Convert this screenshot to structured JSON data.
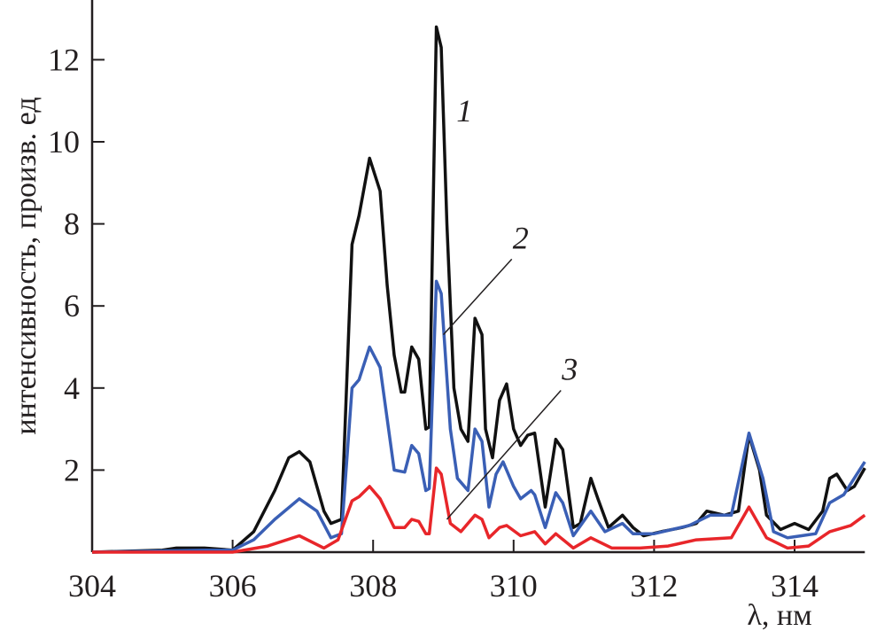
{
  "chart_data": {
    "type": "line",
    "title": "",
    "xlabel": "λ, нм",
    "ylabel": "интенсивность, произв. ед",
    "xlim": [
      304,
      315
    ],
    "ylim": [
      0,
      13.5
    ],
    "xticks": [
      304,
      306,
      308,
      310,
      312,
      314
    ],
    "yticks": [
      2,
      4,
      6,
      8,
      10,
      12
    ],
    "grid": false,
    "series": [
      {
        "name": "1",
        "color": "#111111",
        "x": [
          304,
          305,
          305.2,
          305.6,
          306,
          306.3,
          306.6,
          306.8,
          306.95,
          307.1,
          307.3,
          307.4,
          307.55,
          307.7,
          307.8,
          307.95,
          308.1,
          308.2,
          308.3,
          308.4,
          308.45,
          308.55,
          308.65,
          308.75,
          308.8,
          308.9,
          308.97,
          309.05,
          309.15,
          309.25,
          309.35,
          309.45,
          309.55,
          309.6,
          309.7,
          309.8,
          309.9,
          310.0,
          310.1,
          310.2,
          310.3,
          310.45,
          310.6,
          310.7,
          310.85,
          310.95,
          311.1,
          311.2,
          311.35,
          311.55,
          311.7,
          311.85,
          312.1,
          312.4,
          312.6,
          312.75,
          313.0,
          313.2,
          313.35,
          313.5,
          313.6,
          313.8,
          314.0,
          314.2,
          314.4,
          314.5,
          314.6,
          314.75,
          314.85,
          315
        ],
        "y": [
          0,
          0.05,
          0.1,
          0.1,
          0.05,
          0.5,
          1.5,
          2.3,
          2.45,
          2.2,
          1.0,
          0.7,
          0.8,
          7.5,
          8.2,
          9.6,
          8.8,
          6.5,
          4.8,
          3.9,
          3.9,
          5.0,
          4.7,
          3.0,
          3.05,
          12.8,
          12.3,
          8.0,
          4.0,
          3.0,
          2.7,
          5.7,
          5.3,
          3.0,
          2.3,
          3.7,
          4.1,
          3.0,
          2.6,
          2.85,
          2.9,
          1.1,
          2.75,
          2.5,
          0.6,
          0.7,
          1.8,
          1.3,
          0.6,
          0.9,
          0.6,
          0.4,
          0.5,
          0.6,
          0.7,
          1.0,
          0.9,
          1.0,
          2.85,
          2.0,
          0.9,
          0.55,
          0.7,
          0.55,
          1.0,
          1.8,
          1.9,
          1.5,
          1.6,
          2.05
        ]
      },
      {
        "name": "2",
        "color": "#3a5fb5",
        "x": [
          304,
          305.6,
          306,
          306.3,
          306.6,
          306.95,
          307.2,
          307.4,
          307.55,
          307.7,
          307.8,
          307.95,
          308.1,
          308.3,
          308.45,
          308.55,
          308.65,
          308.75,
          308.8,
          308.9,
          308.97,
          309.1,
          309.2,
          309.35,
          309.45,
          309.55,
          309.65,
          309.75,
          309.85,
          310.0,
          310.1,
          310.25,
          310.3,
          310.45,
          310.6,
          310.7,
          310.85,
          311.1,
          311.3,
          311.55,
          311.7,
          312.0,
          312.5,
          312.8,
          313.1,
          313.35,
          313.55,
          313.7,
          313.9,
          314.1,
          314.3,
          314.5,
          314.7,
          315
        ],
        "y": [
          0,
          0.05,
          0.05,
          0.3,
          0.8,
          1.3,
          1.0,
          0.35,
          0.45,
          4.0,
          4.2,
          5.0,
          4.5,
          2.0,
          1.95,
          2.6,
          2.4,
          1.5,
          1.55,
          6.6,
          6.3,
          3.0,
          1.8,
          1.5,
          3.0,
          2.7,
          1.1,
          1.9,
          2.2,
          1.6,
          1.3,
          1.5,
          1.4,
          0.6,
          1.45,
          1.2,
          0.4,
          1.0,
          0.5,
          0.7,
          0.45,
          0.45,
          0.65,
          0.9,
          0.9,
          2.9,
          1.8,
          0.5,
          0.35,
          0.4,
          0.45,
          1.2,
          1.4,
          2.2
        ]
      },
      {
        "name": "3",
        "color": "#e8262a",
        "x": [
          304,
          306,
          306.5,
          306.95,
          307.3,
          307.5,
          307.7,
          307.8,
          307.95,
          308.1,
          308.3,
          308.45,
          308.55,
          308.65,
          308.75,
          308.8,
          308.9,
          308.97,
          309.1,
          309.25,
          309.45,
          309.55,
          309.65,
          309.8,
          309.9,
          310.1,
          310.3,
          310.45,
          310.6,
          310.85,
          311.1,
          311.4,
          311.8,
          312.2,
          312.6,
          313.1,
          313.35,
          313.6,
          313.9,
          314.2,
          314.5,
          314.8,
          315
        ],
        "y": [
          0,
          0,
          0.15,
          0.4,
          0.1,
          0.3,
          1.25,
          1.35,
          1.6,
          1.3,
          0.6,
          0.6,
          0.8,
          0.75,
          0.45,
          0.45,
          2.05,
          1.9,
          0.7,
          0.5,
          0.9,
          0.8,
          0.35,
          0.6,
          0.65,
          0.4,
          0.5,
          0.2,
          0.45,
          0.1,
          0.35,
          0.1,
          0.1,
          0.15,
          0.3,
          0.35,
          1.1,
          0.35,
          0.1,
          0.15,
          0.5,
          0.65,
          0.9
        ]
      }
    ],
    "annotations": [
      {
        "text": "1",
        "x": 309.3,
        "y": 10.5
      },
      {
        "text": "2",
        "x": 310.1,
        "y": 7.4,
        "points_to": [
          309.0,
          5.3
        ]
      },
      {
        "text": "3",
        "x": 310.8,
        "y": 4.2,
        "points_to": [
          309.05,
          0.8
        ]
      }
    ]
  }
}
